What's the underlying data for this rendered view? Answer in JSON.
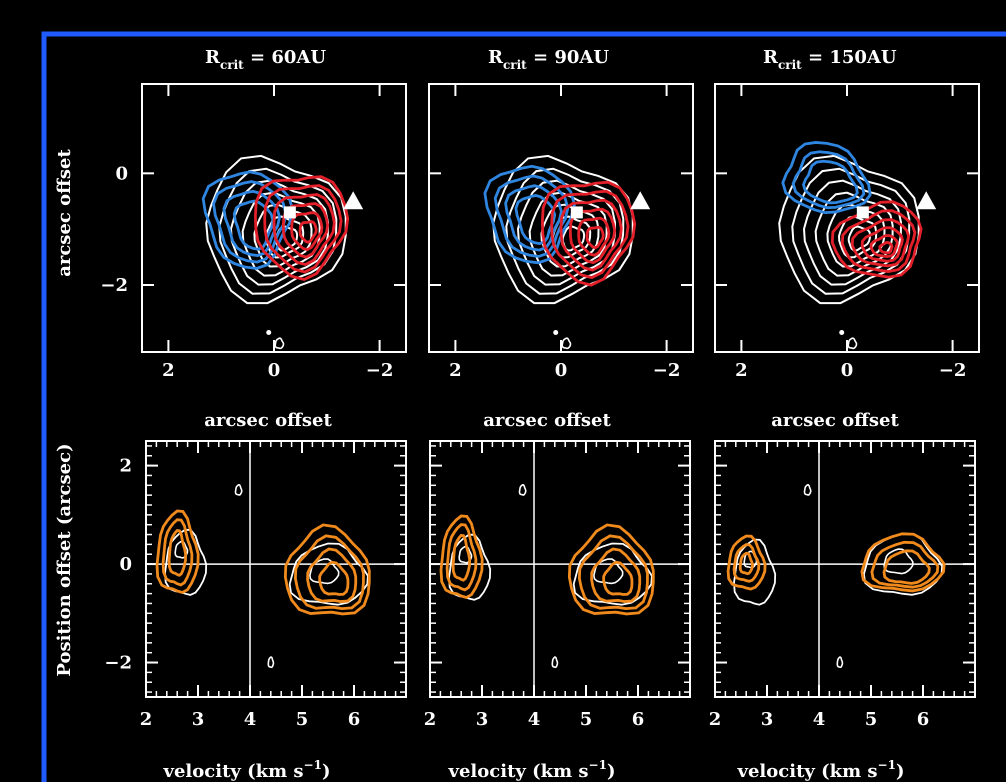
{
  "colors": {
    "background": "#000000",
    "frame": "#1f5bff",
    "axes": "#ffffff",
    "blue_model": "#2f86e0",
    "red_model": "#e3202a",
    "orange_model": "#f08a1c",
    "data_contours": "#ffffff"
  },
  "labels": {
    "rcrit_symbol": "R",
    "rcrit_sub": "crit",
    "rcrit_eq": " = ",
    "top_xlabel": "arcsec offset",
    "top_ylabel": "arcsec offset",
    "bottom_ylabel": "Position offset (arcsec)",
    "bottom_xlabel_main": "velocity (km s",
    "bottom_xlabel_exp": "−1",
    "bottom_xlabel_close": ")"
  },
  "chart_data": [
    {
      "type": "contour",
      "panel": "top-1",
      "title": "60AU",
      "x_ticks": [
        "2",
        "0",
        "−2"
      ],
      "y_ticks": [
        "0",
        "−2"
      ],
      "xlim": [
        2.5,
        -2.5
      ],
      "ylim": [
        -3.2,
        1.6
      ],
      "data_center": [
        0.0,
        -1.0
      ],
      "blue_center": [
        0.5,
        -0.8
      ],
      "red_center": [
        -0.5,
        -0.9
      ],
      "square": [
        -0.3,
        -0.7
      ],
      "triangle": [
        -1.5,
        -0.5
      ]
    },
    {
      "type": "contour",
      "panel": "top-2",
      "title": "90AU",
      "x_ticks": [
        "2",
        "0",
        "−2"
      ],
      "xlim": [
        2.5,
        -2.5
      ],
      "ylim": [
        -3.2,
        1.6
      ],
      "data_center": [
        0.0,
        -1.0
      ],
      "blue_center": [
        0.6,
        -0.7
      ],
      "red_center": [
        -0.5,
        -1.0
      ],
      "square": [
        -0.3,
        -0.7
      ],
      "triangle": [
        -1.5,
        -0.5
      ]
    },
    {
      "type": "contour",
      "panel": "top-3",
      "title": "150AU",
      "x_ticks": [
        "2",
        "0",
        "−2"
      ],
      "xlim": [
        2.5,
        -2.5
      ],
      "ylim": [
        -3.2,
        1.6
      ],
      "data_center": [
        0.0,
        -1.0
      ],
      "blue_center": [
        0.4,
        -0.1
      ],
      "red_center": [
        -0.6,
        -1.2
      ],
      "square": [
        -0.3,
        -0.7
      ],
      "triangle": [
        -1.5,
        -0.5
      ]
    },
    {
      "type": "contour",
      "panel": "bottom-1",
      "x_ticks": [
        "2",
        "3",
        "4",
        "5",
        "6"
      ],
      "y_ticks": [
        "2",
        "0",
        "−2"
      ],
      "xlim": [
        2,
        7
      ],
      "ylim": [
        -2.7,
        2.5
      ],
      "orange_left_center": [
        2.6,
        0.2
      ],
      "orange_right_center": [
        5.5,
        -0.2
      ]
    },
    {
      "type": "contour",
      "panel": "bottom-2",
      "x_ticks": [
        "2",
        "3",
        "4",
        "5",
        "6"
      ],
      "xlim": [
        2,
        7
      ],
      "ylim": [
        -2.7,
        2.5
      ],
      "orange_left_center": [
        2.6,
        0.1
      ],
      "orange_right_center": [
        5.5,
        -0.2
      ]
    },
    {
      "type": "contour",
      "panel": "bottom-3",
      "x_ticks": [
        "2",
        "3",
        "4",
        "5",
        "6"
      ],
      "xlim": [
        2,
        7
      ],
      "ylim": [
        -2.7,
        2.5
      ],
      "orange_left_center": [
        2.6,
        0.0
      ],
      "orange_right_center": [
        5.6,
        0.0
      ]
    }
  ]
}
